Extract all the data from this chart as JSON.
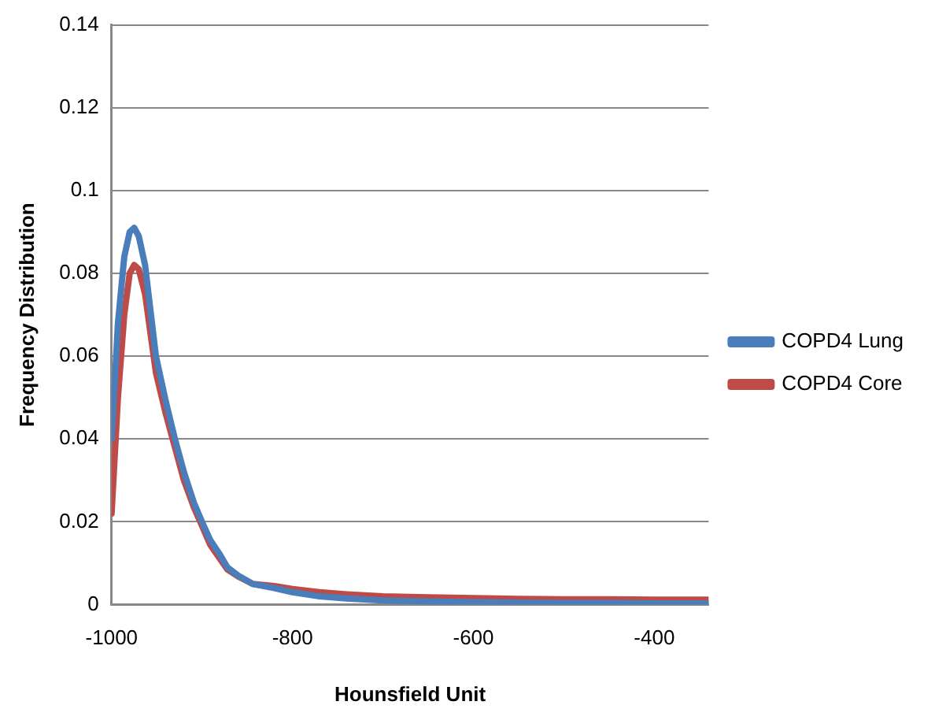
{
  "chart_data": {
    "type": "line",
    "xlabel": "Hounsfield Unit",
    "ylabel": "Frequency Distribution",
    "xlim": [
      -1000,
      -340
    ],
    "xticks": [
      -1000,
      -800,
      -600,
      -400
    ],
    "ylim": [
      0,
      0.14
    ],
    "yticks": [
      0,
      0.02,
      0.04,
      0.06,
      0.08,
      0.1,
      0.12,
      0.14
    ],
    "grid": "y",
    "legend": "right",
    "marker": "none",
    "line_style": "solid",
    "series": [
      {
        "name": "COPD4 Lung",
        "color": "#4a7ebb",
        "x": [
          -1000,
          -993,
          -986,
          -980,
          -975,
          -970,
          -963,
          -951,
          -940,
          -930,
          -920,
          -909,
          -900,
          -891,
          -880,
          -872,
          -860,
          -844,
          -820,
          -800,
          -770,
          -740,
          -700,
          -650,
          -600,
          -550,
          -500,
          -450,
          -400,
          -370,
          -340
        ],
        "values": [
          0.04,
          0.068,
          0.084,
          0.09,
          0.091,
          0.089,
          0.082,
          0.06,
          0.049,
          0.04,
          0.032,
          0.0246,
          0.02,
          0.0156,
          0.012,
          0.009,
          0.007,
          0.005,
          0.004,
          0.003,
          0.002,
          0.0015,
          0.001,
          0.0008,
          0.0006,
          0.0005,
          0.0004,
          0.0004,
          0.0003,
          0.0003,
          0.0003
        ]
      },
      {
        "name": "COPD4 Core",
        "color": "#be4b48",
        "x": [
          -1000,
          -993,
          -986,
          -980,
          -975,
          -970,
          -963,
          -951,
          -940,
          -930,
          -920,
          -909,
          -900,
          -891,
          -880,
          -872,
          -860,
          -844,
          -820,
          -800,
          -770,
          -740,
          -700,
          -650,
          -600,
          -550,
          -500,
          -450,
          -400,
          -370,
          -340
        ],
        "values": [
          0.022,
          0.05,
          0.07,
          0.08,
          0.082,
          0.081,
          0.075,
          0.056,
          0.046,
          0.038,
          0.03,
          0.0235,
          0.019,
          0.0145,
          0.011,
          0.0085,
          0.0068,
          0.005,
          0.0045,
          0.0038,
          0.003,
          0.0025,
          0.002,
          0.0018,
          0.0016,
          0.0014,
          0.0013,
          0.0013,
          0.0012,
          0.0012,
          0.0012
        ]
      }
    ]
  }
}
